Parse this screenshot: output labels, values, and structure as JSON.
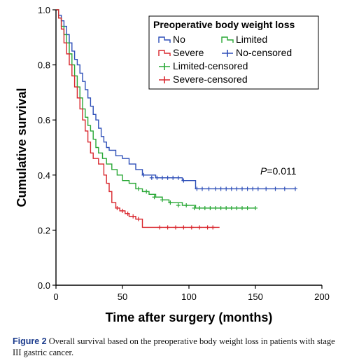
{
  "chart_data": {
    "type": "line",
    "subtype": "kaplan-meier",
    "xlabel": "Time after surgery (months)",
    "ylabel": "Cumulative survival",
    "xlim": [
      0,
      200
    ],
    "ylim": [
      0,
      1
    ],
    "xticks": [
      "0",
      "50",
      "100",
      "150",
      "200"
    ],
    "yticks": [
      "0.0",
      "0.2",
      "0.4",
      "0.6",
      "0.8",
      "1.0"
    ],
    "legend": {
      "title": "Preoperative body weight loss",
      "placement": "top-right",
      "entries": [
        "No",
        "Limited",
        "Severe",
        "No-censored",
        "Limited-censored",
        "Severe-censored"
      ]
    },
    "annotation": {
      "prefix": "P",
      "value": "=0.011"
    },
    "series": [
      {
        "name": "No",
        "color": "#2e4fb8",
        "steps": [
          [
            0,
            1.0
          ],
          [
            2,
            0.98
          ],
          [
            4,
            0.96
          ],
          [
            6,
            0.94
          ],
          [
            8,
            0.91
          ],
          [
            10,
            0.88
          ],
          [
            12,
            0.85
          ],
          [
            14,
            0.82
          ],
          [
            16,
            0.8
          ],
          [
            18,
            0.77
          ],
          [
            20,
            0.74
          ],
          [
            22,
            0.71
          ],
          [
            24,
            0.68
          ],
          [
            26,
            0.65
          ],
          [
            28,
            0.62
          ],
          [
            30,
            0.6
          ],
          [
            32,
            0.57
          ],
          [
            34,
            0.54
          ],
          [
            36,
            0.52
          ],
          [
            38,
            0.5
          ],
          [
            40,
            0.49
          ],
          [
            45,
            0.47
          ],
          [
            50,
            0.46
          ],
          [
            55,
            0.44
          ],
          [
            60,
            0.42
          ],
          [
            65,
            0.4
          ],
          [
            75,
            0.39
          ],
          [
            95,
            0.38
          ],
          [
            105,
            0.35
          ],
          [
            180,
            0.35
          ]
        ],
        "censored": [
          [
            66,
            0.4
          ],
          [
            72,
            0.39
          ],
          [
            76,
            0.39
          ],
          [
            80,
            0.39
          ],
          [
            84,
            0.39
          ],
          [
            88,
            0.39
          ],
          [
            92,
            0.39
          ],
          [
            96,
            0.38
          ],
          [
            106,
            0.35
          ],
          [
            110,
            0.35
          ],
          [
            115,
            0.35
          ],
          [
            120,
            0.35
          ],
          [
            124,
            0.35
          ],
          [
            128,
            0.35
          ],
          [
            132,
            0.35
          ],
          [
            136,
            0.35
          ],
          [
            140,
            0.35
          ],
          [
            144,
            0.35
          ],
          [
            148,
            0.35
          ],
          [
            152,
            0.35
          ],
          [
            158,
            0.35
          ],
          [
            165,
            0.35
          ],
          [
            172,
            0.35
          ],
          [
            180,
            0.35
          ]
        ]
      },
      {
        "name": "Limited",
        "color": "#2aa837",
        "steps": [
          [
            0,
            1.0
          ],
          [
            2,
            0.97
          ],
          [
            4,
            0.94
          ],
          [
            6,
            0.91
          ],
          [
            8,
            0.88
          ],
          [
            10,
            0.84
          ],
          [
            12,
            0.8
          ],
          [
            14,
            0.76
          ],
          [
            16,
            0.72
          ],
          [
            18,
            0.68
          ],
          [
            20,
            0.64
          ],
          [
            22,
            0.61
          ],
          [
            24,
            0.58
          ],
          [
            26,
            0.56
          ],
          [
            28,
            0.53
          ],
          [
            30,
            0.5
          ],
          [
            32,
            0.48
          ],
          [
            35,
            0.46
          ],
          [
            38,
            0.44
          ],
          [
            42,
            0.42
          ],
          [
            46,
            0.4
          ],
          [
            50,
            0.38
          ],
          [
            55,
            0.37
          ],
          [
            60,
            0.35
          ],
          [
            65,
            0.34
          ],
          [
            70,
            0.33
          ],
          [
            75,
            0.32
          ],
          [
            80,
            0.31
          ],
          [
            85,
            0.3
          ],
          [
            95,
            0.29
          ],
          [
            105,
            0.28
          ],
          [
            150,
            0.28
          ]
        ],
        "censored": [
          [
            62,
            0.35
          ],
          [
            68,
            0.34
          ],
          [
            74,
            0.32
          ],
          [
            80,
            0.31
          ],
          [
            86,
            0.3
          ],
          [
            92,
            0.29
          ],
          [
            98,
            0.29
          ],
          [
            104,
            0.28
          ],
          [
            108,
            0.28
          ],
          [
            112,
            0.28
          ],
          [
            116,
            0.28
          ],
          [
            120,
            0.28
          ],
          [
            124,
            0.28
          ],
          [
            128,
            0.28
          ],
          [
            132,
            0.28
          ],
          [
            136,
            0.28
          ],
          [
            140,
            0.28
          ],
          [
            144,
            0.28
          ],
          [
            150,
            0.28
          ]
        ]
      },
      {
        "name": "Severe",
        "color": "#d9272e",
        "steps": [
          [
            0,
            1.0
          ],
          [
            2,
            0.97
          ],
          [
            4,
            0.93
          ],
          [
            6,
            0.88
          ],
          [
            8,
            0.84
          ],
          [
            10,
            0.8
          ],
          [
            12,
            0.76
          ],
          [
            14,
            0.72
          ],
          [
            16,
            0.68
          ],
          [
            18,
            0.64
          ],
          [
            20,
            0.6
          ],
          [
            22,
            0.56
          ],
          [
            24,
            0.52
          ],
          [
            26,
            0.48
          ],
          [
            28,
            0.46
          ],
          [
            32,
            0.44
          ],
          [
            36,
            0.4
          ],
          [
            38,
            0.37
          ],
          [
            40,
            0.34
          ],
          [
            42,
            0.3
          ],
          [
            45,
            0.28
          ],
          [
            48,
            0.27
          ],
          [
            52,
            0.26
          ],
          [
            55,
            0.25
          ],
          [
            60,
            0.24
          ],
          [
            65,
            0.21
          ],
          [
            123,
            0.21
          ]
        ],
        "censored": [
          [
            46,
            0.28
          ],
          [
            50,
            0.27
          ],
          [
            54,
            0.26
          ],
          [
            58,
            0.25
          ],
          [
            62,
            0.24
          ],
          [
            78,
            0.21
          ],
          [
            84,
            0.21
          ],
          [
            90,
            0.21
          ],
          [
            96,
            0.21
          ],
          [
            102,
            0.21
          ],
          [
            108,
            0.21
          ],
          [
            114,
            0.21
          ],
          [
            118,
            0.21
          ]
        ]
      }
    ]
  },
  "caption": {
    "label": "Figure 2",
    "text": " Overall survival based on the preoperative body weight loss in patients with stage III gastric cancer."
  }
}
